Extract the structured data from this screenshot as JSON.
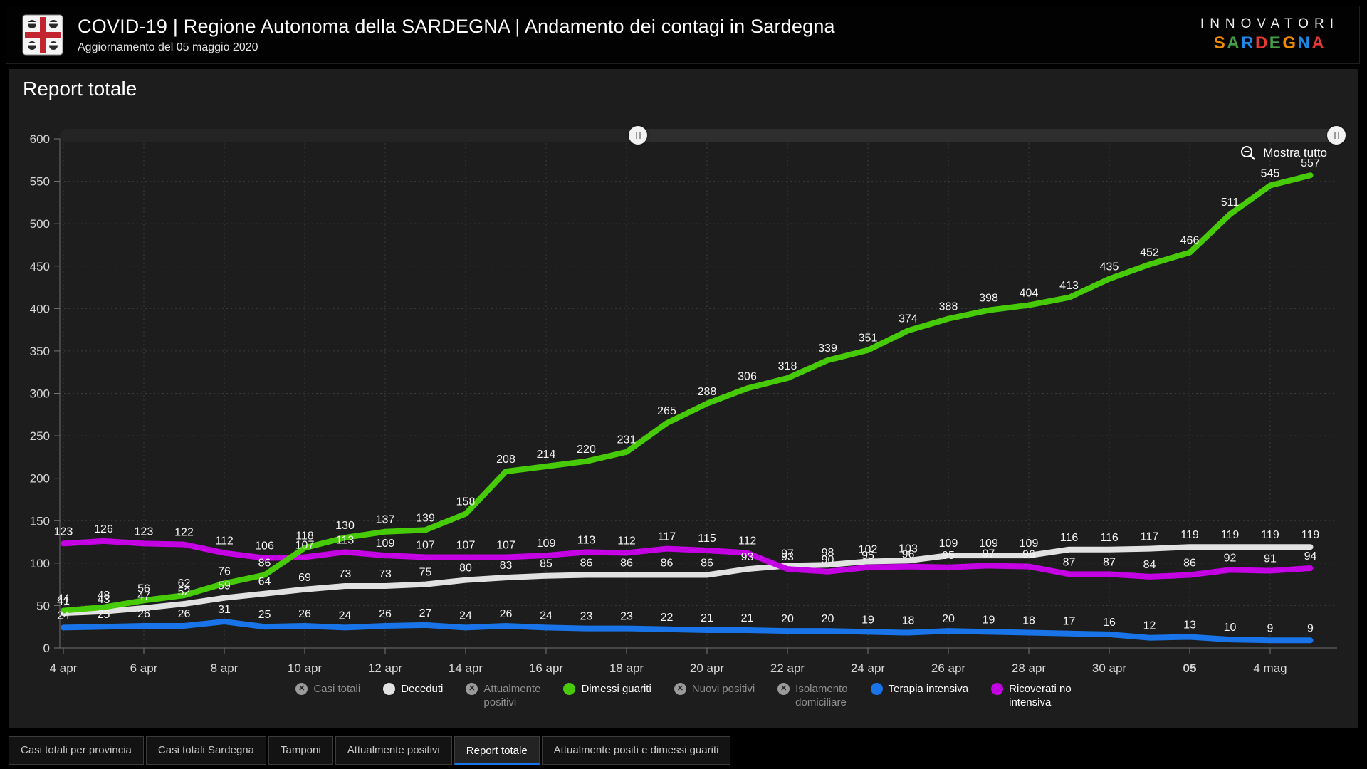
{
  "header": {
    "title": "COVID-19 | Regione Autonoma della SARDEGNA | Andamento dei contagi in Sardegna",
    "subtitle": "Aggiornamento del 05 maggio 2020",
    "logo_icon": "sardinia-coat-of-arms"
  },
  "brand": {
    "line1": "INNOVATORI",
    "line2_letters": [
      {
        "ch": "S",
        "color": "#f08c00"
      },
      {
        "ch": "A",
        "color": "#43a047"
      },
      {
        "ch": "R",
        "color": "#1e88e5"
      },
      {
        "ch": "D",
        "color": "#e53935"
      },
      {
        "ch": "E",
        "color": "#43a047"
      },
      {
        "ch": "G",
        "color": "#f08c00"
      },
      {
        "ch": "N",
        "color": "#1e88e5"
      },
      {
        "ch": "A",
        "color": "#e53935"
      }
    ]
  },
  "panel": {
    "title": "Report totale"
  },
  "controls": {
    "show_all_label": "Mostra tutto",
    "zoom_out_icon": "magnifier-minus-icon"
  },
  "chart_data": {
    "type": "line",
    "x": [
      "4 apr",
      "5 apr",
      "6 apr",
      "7 apr",
      "8 apr",
      "9 apr",
      "10 apr",
      "11 apr",
      "12 apr",
      "13 apr",
      "14 apr",
      "15 apr",
      "16 apr",
      "17 apr",
      "18 apr",
      "19 apr",
      "20 apr",
      "21 apr",
      "22 apr",
      "23 apr",
      "24 apr",
      "25 apr",
      "26 apr",
      "27 apr",
      "28 apr",
      "29 apr",
      "30 apr",
      "1 mag",
      "2 mag",
      "3 mag",
      "4 mag",
      "5 mag"
    ],
    "x_ticks": [
      {
        "label": "4 apr",
        "bold": false
      },
      {
        "label": "6 apr",
        "bold": false
      },
      {
        "label": "8 apr",
        "bold": false
      },
      {
        "label": "10 apr",
        "bold": false
      },
      {
        "label": "12 apr",
        "bold": false
      },
      {
        "label": "14 apr",
        "bold": false
      },
      {
        "label": "16 apr",
        "bold": false
      },
      {
        "label": "18 apr",
        "bold": false
      },
      {
        "label": "20 apr",
        "bold": false
      },
      {
        "label": "22 apr",
        "bold": false
      },
      {
        "label": "24 apr",
        "bold": false
      },
      {
        "label": "26 apr",
        "bold": false
      },
      {
        "label": "28 apr",
        "bold": false
      },
      {
        "label": "30 apr",
        "bold": false
      },
      {
        "label": "05",
        "bold": true
      },
      {
        "label": "4 mag",
        "bold": false
      }
    ],
    "ylim": [
      0,
      600
    ],
    "yticks": [
      0,
      50,
      100,
      150,
      200,
      250,
      300,
      350,
      400,
      450,
      500,
      550,
      600
    ],
    "grid": true,
    "legend_position": "bottom",
    "series": [
      {
        "name": "Deceduti",
        "color": "#e2e2e2",
        "values": [
          41,
          43,
          47,
          52,
          59,
          64,
          69,
          73,
          73,
          75,
          80,
          83,
          85,
          86,
          86,
          86,
          86,
          93,
          97,
          98,
          102,
          103,
          109,
          109,
          109,
          116,
          116,
          117,
          119,
          119,
          119,
          119
        ]
      },
      {
        "name": "Ricoverati no intensiva",
        "color": "#c301e3",
        "values": [
          123,
          126,
          123,
          122,
          112,
          106,
          107,
          113,
          109,
          107,
          107,
          107,
          109,
          113,
          112,
          117,
          115,
          112,
          93,
          90,
          95,
          96,
          95,
          97,
          96,
          87,
          87,
          84,
          86,
          92,
          91,
          94
        ]
      },
      {
        "name": "Dimessi guariti",
        "color": "#47cb06",
        "values": [
          44,
          48,
          56,
          62,
          76,
          86,
          118,
          130,
          137,
          139,
          158,
          208,
          214,
          220,
          231,
          265,
          288,
          306,
          318,
          339,
          351,
          374,
          388,
          398,
          404,
          413,
          435,
          452,
          466,
          511,
          545,
          557
        ]
      },
      {
        "name": "Terapia intensiva",
        "color": "#1874e8",
        "values": [
          24,
          25,
          26,
          26,
          31,
          25,
          26,
          24,
          26,
          27,
          24,
          26,
          24,
          23,
          23,
          22,
          21,
          21,
          20,
          20,
          19,
          18,
          20,
          19,
          18,
          17,
          16,
          12,
          13,
          10,
          9,
          9
        ]
      }
    ]
  },
  "slider": {
    "left_pct": 44.6,
    "right_pct": 99.3
  },
  "legend": [
    {
      "label": "Casi totali",
      "enabled": false,
      "color": "#9b9b9b"
    },
    {
      "label": "Deceduti",
      "enabled": true,
      "color": "#e2e2e2"
    },
    {
      "label": "Attualmente\npositivi",
      "enabled": false,
      "color": "#9b9b9b"
    },
    {
      "label": "Dimessi guariti",
      "enabled": true,
      "color": "#47cb06"
    },
    {
      "label": "Nuovi positivi",
      "enabled": false,
      "color": "#9b9b9b"
    },
    {
      "label": "Isolamento\ndomiciliare",
      "enabled": false,
      "color": "#9b9b9b"
    },
    {
      "label": "Terapia intensiva",
      "enabled": true,
      "color": "#1874e8"
    },
    {
      "label": "Ricoverati no\nintensiva",
      "enabled": true,
      "color": "#c301e3"
    }
  ],
  "tabs": [
    {
      "label": "Casi totali per provincia",
      "active": false
    },
    {
      "label": "Casi totali Sardegna",
      "active": false
    },
    {
      "label": "Tamponi",
      "active": false
    },
    {
      "label": "Attualmente positivi",
      "active": false
    },
    {
      "label": "Report totale",
      "active": true
    },
    {
      "label": "Attualmente positi e dimessi guariti",
      "active": false
    }
  ]
}
